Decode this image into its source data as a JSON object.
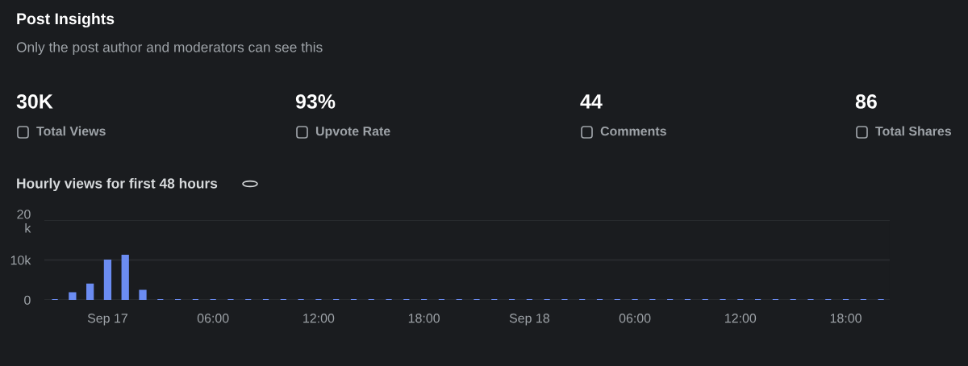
{
  "chart_data": [
    {
      "type": "other",
      "title": "Post Insights",
      "subtitle": "Only the post author and moderators can see this",
      "annotations": [
        "30K",
        "Total Views",
        "93%",
        "Upvote Rate",
        "44",
        "Comments",
        "86",
        "Total Shares"
      ]
    },
    {
      "type": "bar",
      "title": "Hourly views for first 48 hours",
      "categories": [
        null,
        null,
        null,
        "Sep 17",
        null,
        null,
        null,
        null,
        null,
        "06:00",
        null,
        null,
        null,
        null,
        null,
        "12:00",
        null,
        null,
        null,
        null,
        null,
        "18:00",
        null,
        null,
        null,
        null,
        null,
        "Sep 18",
        null,
        null,
        null,
        null,
        null,
        "06:00",
        null,
        null,
        null,
        null,
        null,
        "12:00",
        null,
        null,
        null,
        null,
        null,
        "18:00",
        null,
        null
      ],
      "values": [
        0,
        1700,
        3900,
        9900,
        11100,
        2300,
        0,
        0,
        0,
        0,
        0,
        0,
        0,
        0,
        0,
        0,
        0,
        0,
        0,
        0,
        0,
        0,
        0,
        0,
        0,
        0,
        0,
        0,
        0,
        0,
        0,
        0,
        0,
        0,
        0,
        0,
        0,
        0,
        0,
        0,
        0,
        0,
        0,
        0,
        0,
        0,
        0,
        0
      ],
      "color": "#6b8cf2",
      "ylim": [
        0,
        20000
      ],
      "yticks": [
        0,
        {
          "value": 10000,
          "label": "10k"
        },
        {
          "value": 20000,
          "label": "20\nk"
        }
      ],
      "grid": "y",
      "legend": false
    }
  ]
}
